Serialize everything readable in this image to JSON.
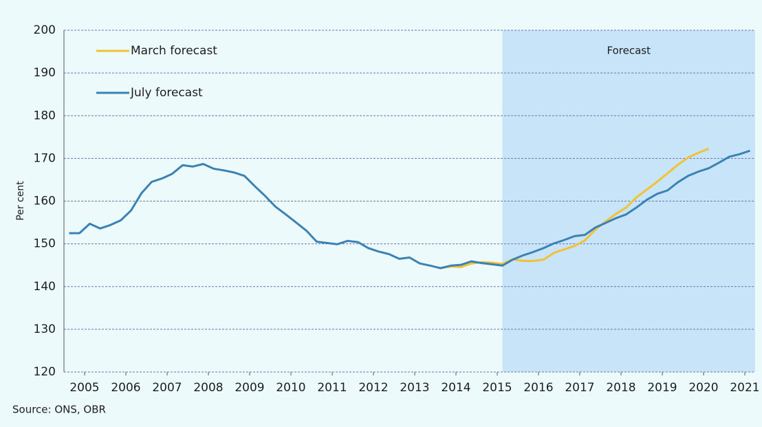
{
  "chart_data": {
    "type": "line",
    "ylabel": "Per cent",
    "source": "Source: ONS, OBR",
    "annotations": [
      {
        "text": "Forecast",
        "x_from": 2015.625
      }
    ],
    "x": [
      2005.125,
      2005.375,
      2005.625,
      2005.875,
      2006.125,
      2006.375,
      2006.625,
      2006.875,
      2007.125,
      2007.375,
      2007.625,
      2007.875,
      2008.125,
      2008.375,
      2008.625,
      2008.875,
      2009.125,
      2009.375,
      2009.625,
      2009.875,
      2010.125,
      2010.375,
      2010.625,
      2010.875,
      2011.125,
      2011.375,
      2011.625,
      2011.875,
      2012.125,
      2012.375,
      2012.625,
      2012.875,
      2013.125,
      2013.375,
      2013.625,
      2013.875,
      2014.125,
      2014.375,
      2014.625,
      2014.875,
      2015.125,
      2015.375,
      2015.625,
      2015.875,
      2016.125,
      2016.375,
      2016.625,
      2016.875,
      2017.125,
      2017.375,
      2017.625,
      2017.875,
      2018.125,
      2018.375,
      2018.625,
      2018.875,
      2019.125,
      2019.375,
      2019.625,
      2019.875,
      2020.125,
      2020.375,
      2020.625,
      2020.875,
      2021.125,
      2021.375,
      2021.625
    ],
    "series": [
      {
        "name": "March forecast",
        "color": "#f2c232",
        "values": [
          null,
          null,
          null,
          null,
          null,
          null,
          null,
          null,
          null,
          null,
          null,
          null,
          null,
          null,
          null,
          null,
          null,
          null,
          null,
          null,
          null,
          null,
          null,
          null,
          null,
          null,
          null,
          null,
          null,
          null,
          null,
          null,
          null,
          null,
          null,
          null,
          144.3,
          144.7,
          144.6,
          145.4,
          145.7,
          145.6,
          145.3,
          146.4,
          146.0,
          146.0,
          146.3,
          147.9,
          148.7,
          149.5,
          150.8,
          153.3,
          155.2,
          157.0,
          158.5,
          160.9,
          162.7,
          164.5,
          166.5,
          168.5,
          170.2,
          171.3,
          172.3,
          null,
          null,
          null,
          null
        ]
      },
      {
        "name": "July forecast",
        "color": "#3a82b4",
        "values": [
          152.5,
          152.5,
          154.7,
          153.6,
          154.4,
          155.5,
          157.8,
          161.8,
          164.5,
          165.3,
          166.4,
          168.4,
          168.1,
          168.7,
          167.6,
          167.2,
          166.7,
          165.9,
          163.5,
          161.2,
          158.7,
          156.9,
          155.0,
          153.1,
          150.5,
          150.2,
          149.9,
          150.7,
          150.4,
          149.0,
          148.2,
          147.6,
          146.5,
          146.8,
          145.4,
          144.9,
          144.3,
          144.9,
          145.1,
          145.9,
          145.5,
          145.2,
          144.9,
          146.3,
          147.3,
          148.1,
          149.0,
          150.1,
          150.9,
          151.8,
          152.1,
          153.8,
          154.9,
          156.0,
          156.9,
          158.5,
          160.3,
          161.7,
          162.5,
          164.4,
          165.9,
          166.9,
          167.7,
          169.0,
          170.4,
          171.0,
          171.8
        ]
      }
    ],
    "xlim": [
      2005,
      2021.75
    ],
    "xticks": [
      {
        "value": 2005.5,
        "label": "2005"
      },
      {
        "value": 2006.5,
        "label": "2006"
      },
      {
        "value": 2007.5,
        "label": "2007"
      },
      {
        "value": 2008.5,
        "label": "2008"
      },
      {
        "value": 2009.5,
        "label": "2009"
      },
      {
        "value": 2010.5,
        "label": "2010"
      },
      {
        "value": 2011.5,
        "label": "2011"
      },
      {
        "value": 2012.5,
        "label": "2012"
      },
      {
        "value": 2013.5,
        "label": "2013"
      },
      {
        "value": 2014.5,
        "label": "2014"
      },
      {
        "value": 2015.5,
        "label": "2015"
      },
      {
        "value": 2016.5,
        "label": "2016"
      },
      {
        "value": 2017.5,
        "label": "2017"
      },
      {
        "value": 2018.5,
        "label": "2018"
      },
      {
        "value": 2019.5,
        "label": "2019"
      },
      {
        "value": 2020.5,
        "label": "2020"
      },
      {
        "value": 2021.5,
        "label": "2021"
      }
    ],
    "ylim": [
      120,
      200
    ],
    "yticks": [
      120,
      130,
      140,
      150,
      160,
      170,
      180,
      190,
      200
    ],
    "grid": true,
    "legend": "upper left"
  }
}
